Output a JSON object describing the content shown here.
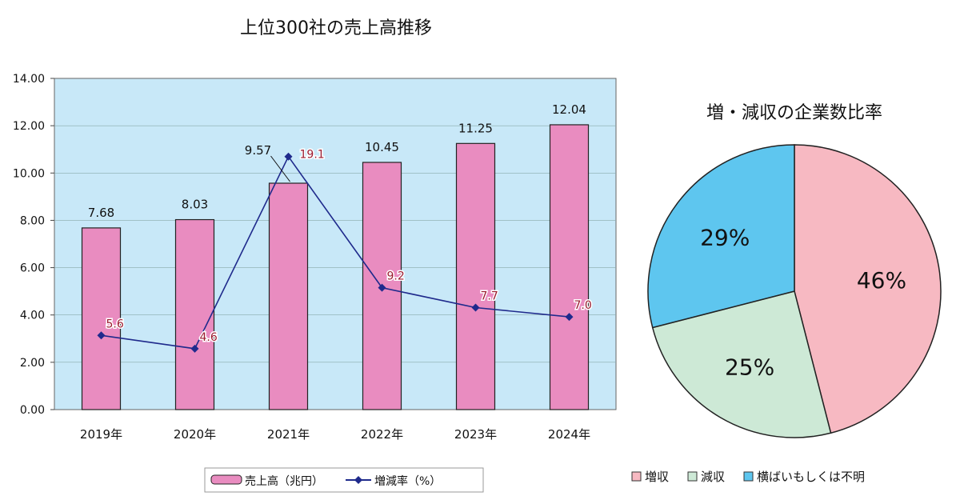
{
  "chart_data": [
    {
      "type": "bar+line",
      "title": "上位300社の売上高推移",
      "categories": [
        "2019年",
        "2020年",
        "2021年",
        "2022年",
        "2023年",
        "2024年"
      ],
      "ylim": [
        0,
        14
      ],
      "yticks": [
        "0.00",
        "2.00",
        "4.00",
        "6.00",
        "8.00",
        "10.00",
        "12.00",
        "14.00"
      ],
      "series": [
        {
          "name": "売上高（兆円）",
          "type": "bar",
          "values": [
            7.68,
            8.03,
            9.57,
            10.45,
            11.25,
            12.04
          ],
          "labels": [
            "7.68",
            "8.03",
            "9.57",
            "10.45",
            "11.25",
            "12.04"
          ],
          "color": "#e98cc0"
        },
        {
          "name": "増減率（%）",
          "type": "line",
          "values": [
            5.6,
            4.6,
            19.1,
            9.2,
            7.7,
            7.0
          ],
          "labels": [
            "5.6",
            "4.6",
            "19.1",
            "9.2",
            "7.7",
            "7.0"
          ],
          "secondary_ylim": [
            0,
            25
          ],
          "color": "#1f2a8c"
        }
      ],
      "grid": true,
      "legend": "bottom",
      "plot_bg": "#c8e8f8"
    },
    {
      "type": "pie",
      "title": "増・減収の企業数比率",
      "labels": [
        "増収",
        "減収",
        "横ばいもしくは不明"
      ],
      "values": [
        46,
        25,
        29
      ],
      "value_labels": [
        "46%",
        "25%",
        "29%"
      ],
      "colors": [
        "#f7b9c2",
        "#cde9d6",
        "#5ec6ef"
      ],
      "legend": "bottom"
    }
  ]
}
